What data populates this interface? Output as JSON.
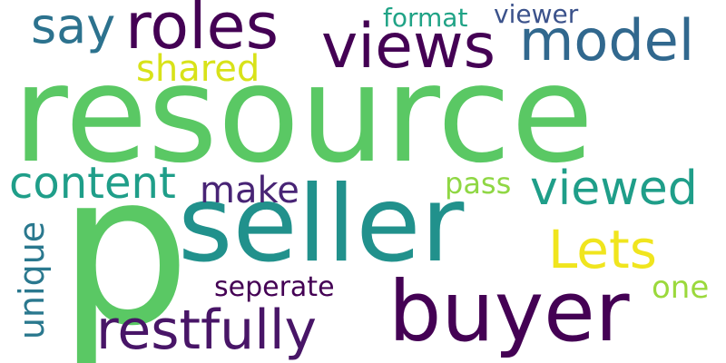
{
  "background_color": "#ffffff",
  "words": [
    {
      "text": "resource",
      "color": "#5ac864",
      "orientation": "horizontal"
    },
    {
      "text": "p",
      "color": "#5ac864",
      "orientation": "horizontal"
    },
    {
      "text": "seller",
      "color": "#21918c",
      "orientation": "horizontal"
    },
    {
      "text": "buyer",
      "color": "#440154",
      "orientation": "horizontal"
    },
    {
      "text": "roles",
      "color": "#440154",
      "orientation": "horizontal"
    },
    {
      "text": "views",
      "color": "#440154",
      "orientation": "horizontal"
    },
    {
      "text": "model",
      "color": "#31688e",
      "orientation": "horizontal"
    },
    {
      "text": "say",
      "color": "#2c728e",
      "orientation": "horizontal"
    },
    {
      "text": "format",
      "color": "#20a386",
      "orientation": "horizontal"
    },
    {
      "text": "viewer",
      "color": "#3b528b",
      "orientation": "horizontal"
    },
    {
      "text": "shared",
      "color": "#d8e219",
      "orientation": "horizontal"
    },
    {
      "text": "content",
      "color": "#1f9e89",
      "orientation": "horizontal"
    },
    {
      "text": "make",
      "color": "#482475",
      "orientation": "horizontal"
    },
    {
      "text": "pass",
      "color": "#8fd744",
      "orientation": "horizontal"
    },
    {
      "text": "viewed",
      "color": "#1f9e89",
      "orientation": "horizontal"
    },
    {
      "text": "Lets",
      "color": "#f0e51e",
      "orientation": "horizontal"
    },
    {
      "text": "unique",
      "color": "#2a788e",
      "orientation": "vertical"
    },
    {
      "text": "seperate",
      "color": "#440154",
      "orientation": "horizontal"
    },
    {
      "text": "one",
      "color": "#9bd93c",
      "orientation": "horizontal"
    },
    {
      "text": "restfully",
      "color": "#481567",
      "orientation": "horizontal"
    }
  ]
}
